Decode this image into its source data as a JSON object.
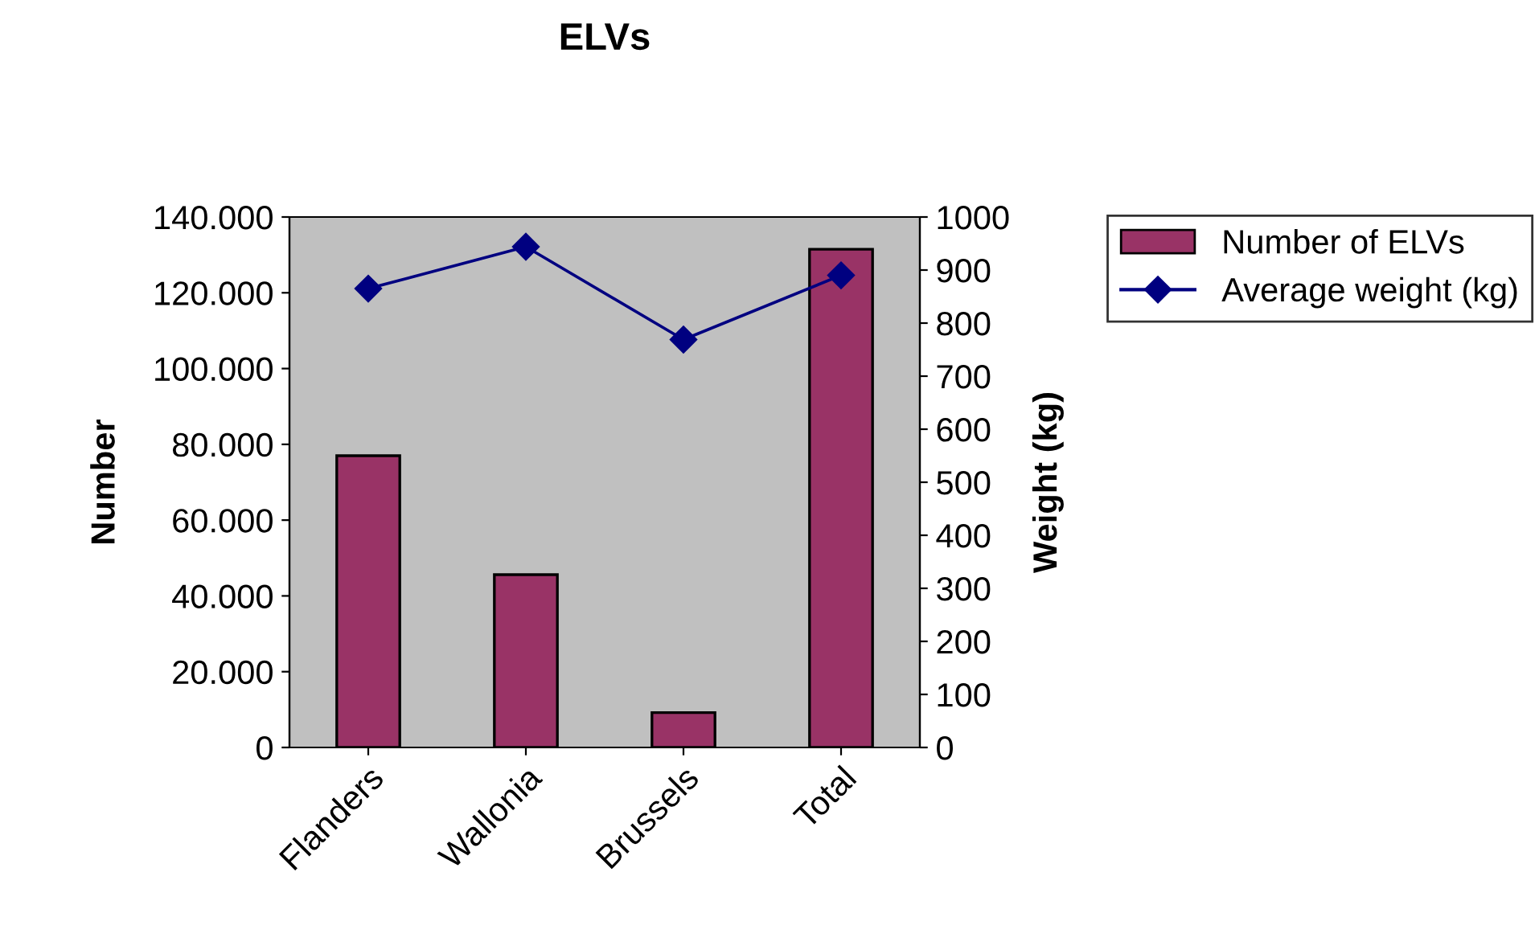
{
  "chart_data": {
    "type": "bar",
    "title": "ELVs",
    "ylabel": "Number",
    "y2label": "Weight (kg)",
    "categories": [
      "Flanders",
      "Wallonia",
      "Brussels",
      "Total"
    ],
    "series": [
      {
        "name": "Number of ELVs",
        "color": "#993366",
        "values": [
          77000,
          45600,
          9200,
          131500
        ]
      },
      {
        "name": "Average weight (kg)",
        "type": "line",
        "axis": "y2",
        "color": "#000080",
        "marker": "diamond",
        "values": [
          865,
          944,
          769,
          890
        ]
      }
    ],
    "ylim": [
      0,
      140000
    ],
    "yticks": [
      0,
      {
        "value": 20000,
        "label": "20.000"
      },
      {
        "value": 40000,
        "label": "40.000"
      },
      {
        "value": 60000,
        "label": "60.000"
      },
      {
        "value": 80000,
        "label": "80.000"
      },
      {
        "value": 100000,
        "label": "100.000"
      },
      {
        "value": 120000,
        "label": "120.000"
      },
      {
        "value": 140000,
        "label": "140.000"
      }
    ],
    "y2lim": [
      0,
      1000
    ],
    "y2ticks": [
      0,
      100,
      200,
      300,
      400,
      500,
      600,
      700,
      800,
      900,
      1000
    ],
    "grid": false,
    "legend": "top right"
  }
}
